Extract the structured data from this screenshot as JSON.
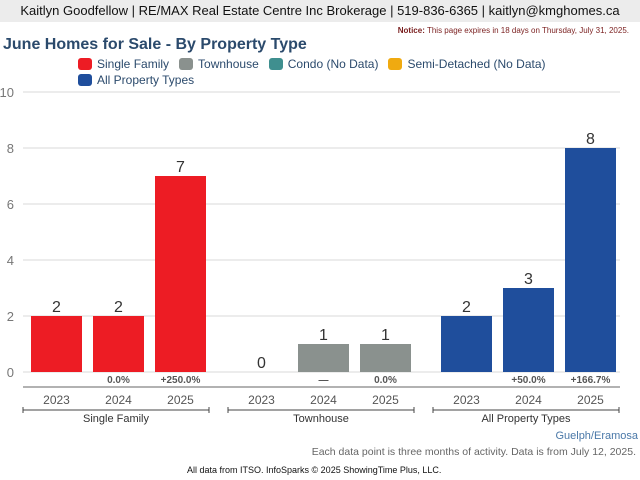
{
  "header": {
    "text": "Kaitlyn Goodfellow | RE/MAX Real Estate Centre Inc Brokerage | 519-836-6365 | kaitlyn@kmghomes.ca"
  },
  "notice": {
    "label": "Notice:",
    "text": " This page expires in 18 days on Thursday, July 31, 2025."
  },
  "region": "Guelph/Eramosa",
  "note": "Each data point is three months of activity. Data is from July 12, 2025.",
  "footer": "All data from ITSO. InfoSparks © 2025 ShowingTime Plus, LLC.",
  "legend": [
    {
      "label": "Single Family",
      "color": "#ed1c24"
    },
    {
      "label": "Townhouse",
      "color": "#8a918e"
    },
    {
      "label": "Condo (No Data)",
      "color": "#3f8f8f"
    },
    {
      "label": "Semi-Detached (No Data)",
      "color": "#f0aa10"
    },
    {
      "label": "All Property Types",
      "color": "#1f4e9c"
    }
  ],
  "chart_data": {
    "type": "bar",
    "title": "June Homes for Sale - By Property Type",
    "xlabel": "",
    "ylabel": "",
    "ylim": [
      0,
      10
    ],
    "yticks": [
      0,
      2,
      4,
      6,
      8,
      10
    ],
    "grid": true,
    "legend_position": "top",
    "groups": [
      {
        "name": "Single Family",
        "color": "#ed1c24",
        "categories": [
          "2023",
          "2024",
          "2025"
        ],
        "values": [
          2,
          2,
          7
        ],
        "changes": [
          "",
          "0.0%",
          "+250.0%"
        ]
      },
      {
        "name": "Townhouse",
        "color": "#8a918e",
        "categories": [
          "2023",
          "2024",
          "2025"
        ],
        "values": [
          0,
          1,
          1
        ],
        "changes": [
          "",
          "—",
          "0.0%"
        ]
      },
      {
        "name": "All Property Types",
        "color": "#1f4e9c",
        "categories": [
          "2023",
          "2024",
          "2025"
        ],
        "values": [
          2,
          3,
          8
        ],
        "changes": [
          "",
          "+50.0%",
          "+166.7%"
        ]
      }
    ]
  }
}
